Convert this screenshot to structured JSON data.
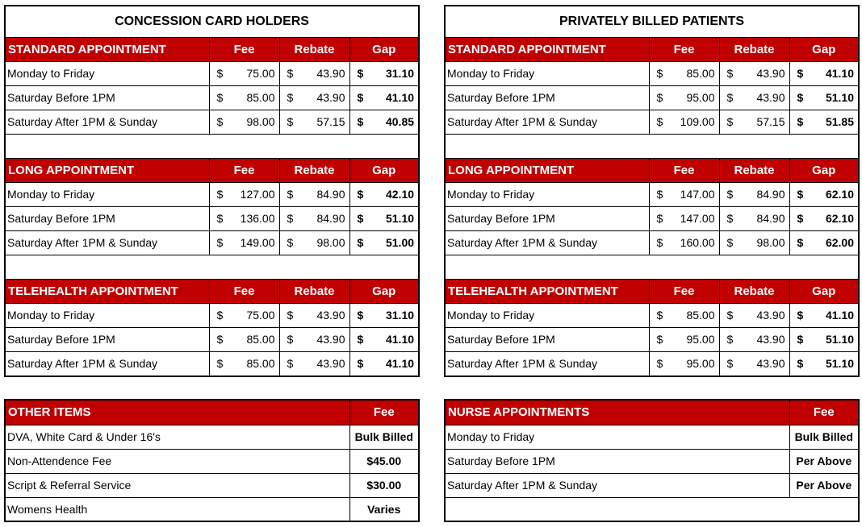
{
  "left": {
    "title": "CONCESSION CARD HOLDERS",
    "sections": [
      {
        "heading": "STANDARD APPOINTMENT",
        "fee": "Fee",
        "rebate": "Rebate",
        "gap": "Gap",
        "rows": [
          {
            "label": "Monday to Friday",
            "cur": "$",
            "fee": "75.00",
            "rebate": "43.90",
            "gap": "31.10"
          },
          {
            "label": "Saturday Before 1PM",
            "cur": "$",
            "fee": "85.00",
            "rebate": "43.90",
            "gap": "41.10"
          },
          {
            "label": "Saturday After 1PM & Sunday",
            "cur": "$",
            "fee": "98.00",
            "rebate": "57.15",
            "gap": "40.85"
          }
        ]
      },
      {
        "heading": "LONG APPOINTMENT",
        "fee": "Fee",
        "rebate": "Rebate",
        "gap": "Gap",
        "rows": [
          {
            "label": "Monday to Friday",
            "cur": "$",
            "fee": "127.00",
            "rebate": "84.90",
            "gap": "42.10"
          },
          {
            "label": "Saturday Before 1PM",
            "cur": "$",
            "fee": "136.00",
            "rebate": "84.90",
            "gap": "51.10"
          },
          {
            "label": "Saturday After 1PM & Sunday",
            "cur": "$",
            "fee": "149.00",
            "rebate": "98.00",
            "gap": "51.00"
          }
        ]
      },
      {
        "heading": "TELEHEALTH APPOINTMENT",
        "fee": "Fee",
        "rebate": "Rebate",
        "gap": "Gap",
        "rows": [
          {
            "label": "Monday to Friday",
            "cur": "$",
            "fee": "75.00",
            "rebate": "43.90",
            "gap": "31.10"
          },
          {
            "label": "Saturday Before 1PM",
            "cur": "$",
            "fee": "85.00",
            "rebate": "43.90",
            "gap": "41.10"
          },
          {
            "label": "Saturday After 1PM & Sunday",
            "cur": "$",
            "fee": "85.00",
            "rebate": "43.90",
            "gap": "41.10"
          }
        ]
      }
    ]
  },
  "right": {
    "title": "PRIVATELY BILLED PATIENTS",
    "sections": [
      {
        "heading": "STANDARD APPOINTMENT",
        "fee": "Fee",
        "rebate": "Rebate",
        "gap": "Gap",
        "rows": [
          {
            "label": "Monday to Friday",
            "cur": "$",
            "fee": "85.00",
            "rebate": "43.90",
            "gap": "41.10"
          },
          {
            "label": "Saturday Before 1PM",
            "cur": "$",
            "fee": "95.00",
            "rebate": "43.90",
            "gap": "51.10"
          },
          {
            "label": "Saturday After 1PM & Sunday",
            "cur": "$",
            "fee": "109.00",
            "rebate": "57.15",
            "gap": "51.85"
          }
        ]
      },
      {
        "heading": "LONG APPOINTMENT",
        "fee": "Fee",
        "rebate": "Rebate",
        "gap": "Gap",
        "rows": [
          {
            "label": "Monday to Friday",
            "cur": "$",
            "fee": "147.00",
            "rebate": "84.90",
            "gap": "62.10"
          },
          {
            "label": "Saturday Before 1PM",
            "cur": "$",
            "fee": "147.00",
            "rebate": "84.90",
            "gap": "62.10"
          },
          {
            "label": "Saturday After 1PM & Sunday",
            "cur": "$",
            "fee": "160.00",
            "rebate": "98.00",
            "gap": "62.00"
          }
        ]
      },
      {
        "heading": "TELEHEALTH APPOINTMENT",
        "fee": "Fee",
        "rebate": "Rebate",
        "gap": "Gap",
        "rows": [
          {
            "label": "Monday to Friday",
            "cur": "$",
            "fee": "85.00",
            "rebate": "43.90",
            "gap": "41.10"
          },
          {
            "label": "Saturday Before 1PM",
            "cur": "$",
            "fee": "95.00",
            "rebate": "43.90",
            "gap": "51.10"
          },
          {
            "label": "Saturday After 1PM & Sunday",
            "cur": "$",
            "fee": "95.00",
            "rebate": "43.90",
            "gap": "51.10"
          }
        ]
      }
    ]
  },
  "other": {
    "heading": "OTHER ITEMS",
    "fee": "Fee",
    "rows": [
      {
        "label": "DVA, White Card & Under 16's",
        "value": "Bulk Billed"
      },
      {
        "label": "Non-Attendence Fee",
        "value": "$45.00"
      },
      {
        "label": "Script & Referral Service",
        "value": "$30.00"
      },
      {
        "label": "Womens Health",
        "value": "Varies"
      }
    ]
  },
  "nurse": {
    "heading": "NURSE APPOINTMENTS",
    "fee": "Fee",
    "rows": [
      {
        "label": "Monday to Friday",
        "value": "Bulk Billed"
      },
      {
        "label": "Saturday Before 1PM",
        "value": "Per Above"
      },
      {
        "label": "Saturday After 1PM & Sunday",
        "value": "Per Above"
      },
      {
        "label": "",
        "value": ""
      }
    ]
  },
  "colors": {
    "header_bg": "#c00000",
    "header_text": "#ffffff"
  }
}
